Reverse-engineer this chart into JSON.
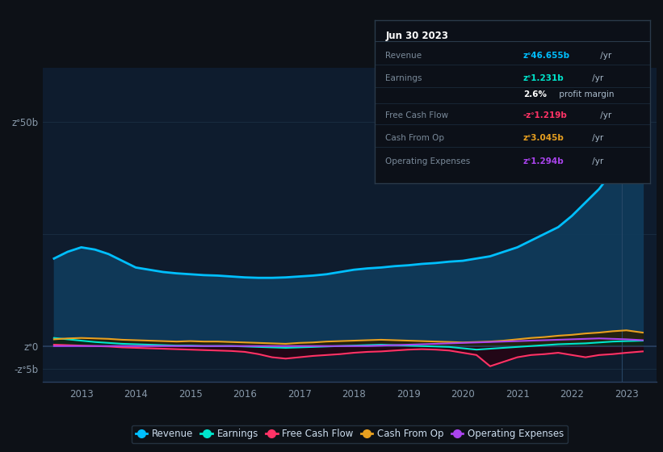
{
  "background_color": "#0d1117",
  "plot_bg_color": "#0e1c2e",
  "grid_color": "#1e3347",
  "ytick_labels": [
    "zᐤ50b",
    "zᐤ0",
    "-zᐤ5b"
  ],
  "ytick_vals": [
    50,
    0,
    -5
  ],
  "ylim": [
    -8,
    62
  ],
  "years": [
    2012.5,
    2012.75,
    2013.0,
    2013.25,
    2013.5,
    2013.75,
    2014.0,
    2014.25,
    2014.5,
    2014.75,
    2015.0,
    2015.25,
    2015.5,
    2015.75,
    2016.0,
    2016.25,
    2016.5,
    2016.75,
    2017.0,
    2017.25,
    2017.5,
    2017.75,
    2018.0,
    2018.25,
    2018.5,
    2018.75,
    2019.0,
    2019.25,
    2019.5,
    2019.75,
    2020.0,
    2020.25,
    2020.5,
    2020.75,
    2021.0,
    2021.25,
    2021.5,
    2021.75,
    2022.0,
    2022.25,
    2022.5,
    2022.75,
    2023.0,
    2023.3
  ],
  "revenue": [
    19.5,
    21.0,
    22.0,
    21.5,
    20.5,
    19.0,
    17.5,
    17.0,
    16.5,
    16.2,
    16.0,
    15.8,
    15.7,
    15.5,
    15.3,
    15.2,
    15.2,
    15.3,
    15.5,
    15.7,
    16.0,
    16.5,
    17.0,
    17.3,
    17.5,
    17.8,
    18.0,
    18.3,
    18.5,
    18.8,
    19.0,
    19.5,
    20.0,
    21.0,
    22.0,
    23.5,
    25.0,
    26.5,
    29.0,
    32.0,
    35.0,
    39.0,
    43.0,
    47.0
  ],
  "earnings": [
    1.8,
    1.5,
    1.2,
    0.9,
    0.7,
    0.5,
    0.4,
    0.3,
    0.2,
    0.1,
    0.1,
    0.0,
    0.0,
    0.0,
    -0.1,
    -0.2,
    -0.3,
    -0.4,
    -0.3,
    -0.2,
    -0.1,
    0.0,
    0.1,
    0.2,
    0.3,
    0.2,
    0.1,
    0.0,
    -0.1,
    -0.2,
    -0.5,
    -0.8,
    -0.6,
    -0.4,
    -0.2,
    0.0,
    0.2,
    0.4,
    0.5,
    0.6,
    0.8,
    1.0,
    1.1,
    1.2
  ],
  "free_cash_flow": [
    0.3,
    0.2,
    0.1,
    0.0,
    -0.1,
    -0.3,
    -0.4,
    -0.5,
    -0.6,
    -0.7,
    -0.8,
    -0.9,
    -1.0,
    -1.1,
    -1.3,
    -1.8,
    -2.5,
    -2.8,
    -2.5,
    -2.2,
    -2.0,
    -1.8,
    -1.5,
    -1.3,
    -1.2,
    -1.0,
    -0.8,
    -0.7,
    -0.8,
    -1.0,
    -1.5,
    -2.0,
    -4.5,
    -3.5,
    -2.5,
    -2.0,
    -1.8,
    -1.5,
    -2.0,
    -2.5,
    -2.0,
    -1.8,
    -1.5,
    -1.2
  ],
  "cash_from_op": [
    1.5,
    1.7,
    1.8,
    1.7,
    1.6,
    1.4,
    1.3,
    1.2,
    1.1,
    1.0,
    1.1,
    1.0,
    1.0,
    0.9,
    0.8,
    0.7,
    0.6,
    0.5,
    0.7,
    0.8,
    1.0,
    1.1,
    1.2,
    1.3,
    1.4,
    1.3,
    1.2,
    1.1,
    1.0,
    0.9,
    0.8,
    0.9,
    1.0,
    1.2,
    1.5,
    1.8,
    2.0,
    2.3,
    2.5,
    2.8,
    3.0,
    3.3,
    3.5,
    3.0
  ],
  "operating_expenses": [
    0.0,
    0.0,
    0.0,
    0.0,
    0.0,
    0.0,
    0.0,
    0.0,
    0.0,
    0.0,
    0.0,
    0.0,
    0.0,
    0.0,
    0.0,
    0.0,
    0.0,
    0.0,
    0.0,
    0.0,
    0.0,
    0.0,
    0.0,
    0.0,
    0.1,
    0.2,
    0.3,
    0.4,
    0.5,
    0.6,
    0.7,
    0.8,
    0.9,
    1.0,
    1.1,
    1.2,
    1.3,
    1.4,
    1.5,
    1.6,
    1.7,
    1.6,
    1.5,
    1.3
  ],
  "revenue_color": "#00bfff",
  "earnings_color": "#00e5cc",
  "fcf_color": "#ff3366",
  "cashop_color": "#e8a020",
  "opex_color": "#aa44ee",
  "legend_labels": [
    "Revenue",
    "Earnings",
    "Free Cash Flow",
    "Cash From Op",
    "Operating Expenses"
  ],
  "legend_colors": [
    "#00bfff",
    "#00e5cc",
    "#ff3366",
    "#e8a020",
    "#aa44ee"
  ],
  "xtick_years": [
    2013,
    2014,
    2015,
    2016,
    2017,
    2018,
    2019,
    2020,
    2021,
    2022,
    2023
  ],
  "xlim": [
    2012.3,
    2023.55
  ],
  "tooltip_title": "Jun 30 2023",
  "tooltip_rows": [
    {
      "label": "Revenue",
      "value": "zᐤ46.655b",
      "suffix": " /yr",
      "color": "#00bfff",
      "bold_val": true
    },
    {
      "label": "Earnings",
      "value": "zᐤ1.231b",
      "suffix": " /yr",
      "color": "#00e5cc",
      "bold_val": true
    },
    {
      "label": "",
      "value": "2.6%",
      "suffix": " profit margin",
      "color": "white",
      "bold_val": true
    },
    {
      "label": "Free Cash Flow",
      "value": "-zᐤ1.219b",
      "suffix": " /yr",
      "color": "#ff3366",
      "bold_val": true
    },
    {
      "label": "Cash From Op",
      "value": "zᐤ3.045b",
      "suffix": " /yr",
      "color": "#e8a020",
      "bold_val": true
    },
    {
      "label": "Operating Expenses",
      "value": "zᐤ1.294b",
      "suffix": " /yr",
      "color": "#aa44ee",
      "bold_val": true
    }
  ]
}
